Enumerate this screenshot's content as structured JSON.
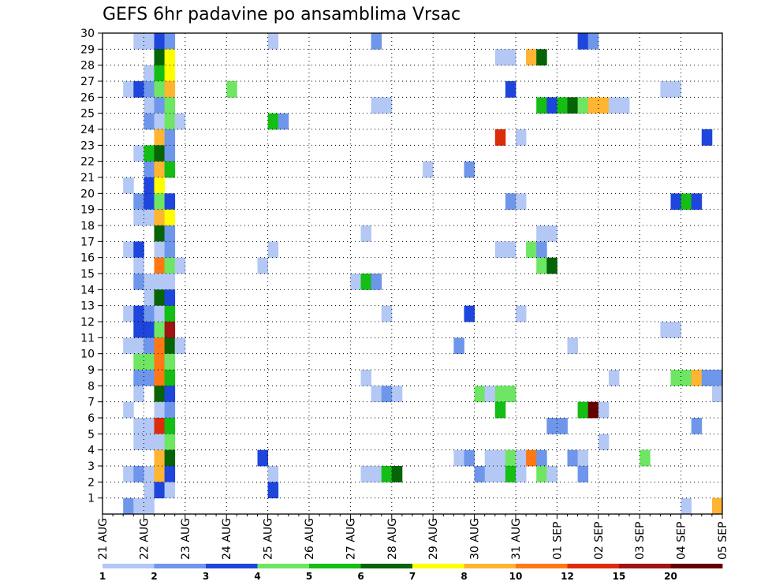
{
  "chart_data": {
    "type": "heatmap",
    "title": "GEFS 6hr padavine po ansamblima Vrsac",
    "x_tick_labels": [
      "21 AUG",
      "22 AUG",
      "23 AUG",
      "24 AUG",
      "25 AUG",
      "26 AUG",
      "27 AUG",
      "28 AUG",
      "29 AUG",
      "30 AUG",
      "31 AUG",
      "01 SEP",
      "02 SEP",
      "03 SEP",
      "04 SEP",
      "05 SEP"
    ],
    "x_steps_per_day": 4,
    "y_tick_labels": [
      "1",
      "2",
      "3",
      "4",
      "5",
      "6",
      "7",
      "8",
      "9",
      "10",
      "11",
      "12",
      "13",
      "14",
      "15",
      "16",
      "17",
      "18",
      "19",
      "20",
      "21",
      "22",
      "23",
      "24",
      "25",
      "26",
      "27",
      "28",
      "29",
      "30"
    ],
    "ylim": [
      0,
      30
    ],
    "grid": true,
    "colorbar": {
      "labels": [
        "1",
        "2",
        "3",
        "4",
        "5",
        "6",
        "7",
        "8",
        "10",
        "12",
        "15",
        "20"
      ],
      "colors": [
        "#b4c8f5",
        "#6e96eb",
        "#1e46dc",
        "#6ee664",
        "#14be14",
        "#066406",
        "#ffff00",
        "#ffb432",
        "#ff7814",
        "#dc2d0a",
        "#a01414",
        "#640000"
      ]
    },
    "cells": [
      {
        "member": 30,
        "step": 3,
        "level": 0
      },
      {
        "member": 30,
        "step": 4,
        "level": 0
      },
      {
        "member": 30,
        "step": 5,
        "level": 2
      },
      {
        "member": 30,
        "step": 6,
        "level": 1
      },
      {
        "member": 30,
        "step": 16,
        "level": 0
      },
      {
        "member": 30,
        "step": 26,
        "level": 1
      },
      {
        "member": 30,
        "step": 46,
        "level": 2
      },
      {
        "member": 30,
        "step": 47,
        "level": 1
      },
      {
        "member": 29,
        "step": 5,
        "level": 5
      },
      {
        "member": 29,
        "step": 6,
        "level": 6
      },
      {
        "member": 29,
        "step": 38,
        "level": 0
      },
      {
        "member": 29,
        "step": 39,
        "level": 0
      },
      {
        "member": 29,
        "step": 41,
        "level": 7
      },
      {
        "member": 29,
        "step": 42,
        "level": 5
      },
      {
        "member": 28,
        "step": 4,
        "level": 0
      },
      {
        "member": 28,
        "step": 5,
        "level": 4
      },
      {
        "member": 28,
        "step": 6,
        "level": 6
      },
      {
        "member": 27,
        "step": 2,
        "level": 0
      },
      {
        "member": 27,
        "step": 3,
        "level": 2
      },
      {
        "member": 27,
        "step": 4,
        "level": 1
      },
      {
        "member": 27,
        "step": 5,
        "level": 3
      },
      {
        "member": 27,
        "step": 6,
        "level": 7
      },
      {
        "member": 27,
        "step": 12,
        "level": 3
      },
      {
        "member": 27,
        "step": 39,
        "level": 2
      },
      {
        "member": 27,
        "step": 54,
        "level": 0
      },
      {
        "member": 27,
        "step": 55,
        "level": 0
      },
      {
        "member": 26,
        "step": 4,
        "level": 0
      },
      {
        "member": 26,
        "step": 5,
        "level": 1
      },
      {
        "member": 26,
        "step": 6,
        "level": 3
      },
      {
        "member": 26,
        "step": 26,
        "level": 0
      },
      {
        "member": 26,
        "step": 27,
        "level": 0
      },
      {
        "member": 26,
        "step": 42,
        "level": 4
      },
      {
        "member": 26,
        "step": 43,
        "level": 2
      },
      {
        "member": 26,
        "step": 44,
        "level": 4
      },
      {
        "member": 26,
        "step": 45,
        "level": 5
      },
      {
        "member": 26,
        "step": 46,
        "level": 3
      },
      {
        "member": 26,
        "step": 47,
        "level": 7
      },
      {
        "member": 26,
        "step": 48,
        "level": 7
      },
      {
        "member": 26,
        "step": 49,
        "level": 0
      },
      {
        "member": 26,
        "step": 50,
        "level": 0
      },
      {
        "member": 25,
        "step": 4,
        "level": 1
      },
      {
        "member": 25,
        "step": 5,
        "level": 0
      },
      {
        "member": 25,
        "step": 6,
        "level": 3
      },
      {
        "member": 25,
        "step": 7,
        "level": 0
      },
      {
        "member": 25,
        "step": 16,
        "level": 4
      },
      {
        "member": 25,
        "step": 17,
        "level": 1
      },
      {
        "member": 24,
        "step": 5,
        "level": 7
      },
      {
        "member": 24,
        "step": 6,
        "level": 1
      },
      {
        "member": 24,
        "step": 38,
        "level": 9
      },
      {
        "member": 24,
        "step": 40,
        "level": 0
      },
      {
        "member": 24,
        "step": 58,
        "level": 2
      },
      {
        "member": 23,
        "step": 3,
        "level": 0
      },
      {
        "member": 23,
        "step": 4,
        "level": 4
      },
      {
        "member": 23,
        "step": 5,
        "level": 5
      },
      {
        "member": 23,
        "step": 6,
        "level": 1
      },
      {
        "member": 22,
        "step": 4,
        "level": 1
      },
      {
        "member": 22,
        "step": 5,
        "level": 7
      },
      {
        "member": 22,
        "step": 6,
        "level": 4
      },
      {
        "member": 22,
        "step": 31,
        "level": 0
      },
      {
        "member": 22,
        "step": 35,
        "level": 1
      },
      {
        "member": 21,
        "step": 2,
        "level": 0
      },
      {
        "member": 21,
        "step": 4,
        "level": 2
      },
      {
        "member": 21,
        "step": 5,
        "level": 6
      },
      {
        "member": 20,
        "step": 3,
        "level": 1
      },
      {
        "member": 20,
        "step": 4,
        "level": 2
      },
      {
        "member": 20,
        "step": 5,
        "level": 3
      },
      {
        "member": 20,
        "step": 6,
        "level": 2
      },
      {
        "member": 20,
        "step": 39,
        "level": 1
      },
      {
        "member": 20,
        "step": 40,
        "level": 0
      },
      {
        "member": 20,
        "step": 55,
        "level": 2
      },
      {
        "member": 20,
        "step": 56,
        "level": 4
      },
      {
        "member": 20,
        "step": 57,
        "level": 2
      },
      {
        "member": 19,
        "step": 3,
        "level": 0
      },
      {
        "member": 19,
        "step": 4,
        "level": 0
      },
      {
        "member": 19,
        "step": 5,
        "level": 7
      },
      {
        "member": 19,
        "step": 6,
        "level": 6
      },
      {
        "member": 18,
        "step": 5,
        "level": 5
      },
      {
        "member": 18,
        "step": 6,
        "level": 1
      },
      {
        "member": 18,
        "step": 25,
        "level": 0
      },
      {
        "member": 18,
        "step": 42,
        "level": 0
      },
      {
        "member": 18,
        "step": 43,
        "level": 0
      },
      {
        "member": 17,
        "step": 2,
        "level": 0
      },
      {
        "member": 17,
        "step": 3,
        "level": 2
      },
      {
        "member": 17,
        "step": 5,
        "level": 0
      },
      {
        "member": 17,
        "step": 6,
        "level": 1
      },
      {
        "member": 17,
        "step": 16,
        "level": 0
      },
      {
        "member": 17,
        "step": 38,
        "level": 0
      },
      {
        "member": 17,
        "step": 39,
        "level": 0
      },
      {
        "member": 17,
        "step": 41,
        "level": 3
      },
      {
        "member": 17,
        "step": 42,
        "level": 1
      },
      {
        "member": 16,
        "step": 3,
        "level": 0
      },
      {
        "member": 16,
        "step": 5,
        "level": 8
      },
      {
        "member": 16,
        "step": 6,
        "level": 3
      },
      {
        "member": 16,
        "step": 7,
        "level": 0
      },
      {
        "member": 16,
        "step": 15,
        "level": 0
      },
      {
        "member": 16,
        "step": 42,
        "level": 3
      },
      {
        "member": 16,
        "step": 43,
        "level": 5
      },
      {
        "member": 15,
        "step": 3,
        "level": 1
      },
      {
        "member": 15,
        "step": 4,
        "level": 0
      },
      {
        "member": 15,
        "step": 5,
        "level": 0
      },
      {
        "member": 15,
        "step": 6,
        "level": 0
      },
      {
        "member": 15,
        "step": 24,
        "level": 0
      },
      {
        "member": 15,
        "step": 25,
        "level": 4
      },
      {
        "member": 15,
        "step": 26,
        "level": 1
      },
      {
        "member": 14,
        "step": 4,
        "level": 0
      },
      {
        "member": 14,
        "step": 5,
        "level": 5
      },
      {
        "member": 14,
        "step": 6,
        "level": 2
      },
      {
        "member": 13,
        "step": 2,
        "level": 0
      },
      {
        "member": 13,
        "step": 3,
        "level": 2
      },
      {
        "member": 13,
        "step": 4,
        "level": 1
      },
      {
        "member": 13,
        "step": 5,
        "level": 0
      },
      {
        "member": 13,
        "step": 6,
        "level": 4
      },
      {
        "member": 13,
        "step": 27,
        "level": 0
      },
      {
        "member": 13,
        "step": 35,
        "level": 2
      },
      {
        "member": 13,
        "step": 40,
        "level": 0
      },
      {
        "member": 12,
        "step": 3,
        "level": 2
      },
      {
        "member": 12,
        "step": 4,
        "level": 2
      },
      {
        "member": 12,
        "step": 5,
        "level": 3
      },
      {
        "member": 12,
        "step": 6,
        "level": 10
      },
      {
        "member": 12,
        "step": 54,
        "level": 0
      },
      {
        "member": 12,
        "step": 55,
        "level": 0
      },
      {
        "member": 11,
        "step": 2,
        "level": 0
      },
      {
        "member": 11,
        "step": 3,
        "level": 0
      },
      {
        "member": 11,
        "step": 4,
        "level": 1
      },
      {
        "member": 11,
        "step": 5,
        "level": 8
      },
      {
        "member": 11,
        "step": 6,
        "level": 5
      },
      {
        "member": 11,
        "step": 7,
        "level": 0
      },
      {
        "member": 11,
        "step": 34,
        "level": 1
      },
      {
        "member": 11,
        "step": 45,
        "level": 0
      },
      {
        "member": 10,
        "step": 3,
        "level": 3
      },
      {
        "member": 10,
        "step": 4,
        "level": 3
      },
      {
        "member": 10,
        "step": 5,
        "level": 8
      },
      {
        "member": 10,
        "step": 6,
        "level": 3
      },
      {
        "member": 9,
        "step": 3,
        "level": 1
      },
      {
        "member": 9,
        "step": 4,
        "level": 1
      },
      {
        "member": 9,
        "step": 5,
        "level": 8
      },
      {
        "member": 9,
        "step": 6,
        "level": 4
      },
      {
        "member": 9,
        "step": 25,
        "level": 0
      },
      {
        "member": 9,
        "step": 49,
        "level": 0
      },
      {
        "member": 9,
        "step": 55,
        "level": 3
      },
      {
        "member": 9,
        "step": 56,
        "level": 3
      },
      {
        "member": 9,
        "step": 57,
        "level": 7
      },
      {
        "member": 9,
        "step": 58,
        "level": 1
      },
      {
        "member": 9,
        "step": 59,
        "level": 1
      },
      {
        "member": 8,
        "step": 3,
        "level": 0
      },
      {
        "member": 8,
        "step": 5,
        "level": 5
      },
      {
        "member": 8,
        "step": 6,
        "level": 2
      },
      {
        "member": 8,
        "step": 26,
        "level": 0
      },
      {
        "member": 8,
        "step": 27,
        "level": 1
      },
      {
        "member": 8,
        "step": 28,
        "level": 0
      },
      {
        "member": 8,
        "step": 36,
        "level": 3
      },
      {
        "member": 8,
        "step": 37,
        "level": 0
      },
      {
        "member": 8,
        "step": 38,
        "level": 3
      },
      {
        "member": 8,
        "step": 39,
        "level": 3
      },
      {
        "member": 8,
        "step": 59,
        "level": 0
      },
      {
        "member": 7,
        "step": 2,
        "level": 0
      },
      {
        "member": 7,
        "step": 5,
        "level": 0
      },
      {
        "member": 7,
        "step": 6,
        "level": 1
      },
      {
        "member": 7,
        "step": 38,
        "level": 4
      },
      {
        "member": 7,
        "step": 46,
        "level": 4
      },
      {
        "member": 7,
        "step": 47,
        "level": 11
      },
      {
        "member": 7,
        "step": 48,
        "level": 0
      },
      {
        "member": 6,
        "step": 3,
        "level": 0
      },
      {
        "member": 6,
        "step": 4,
        "level": 0
      },
      {
        "member": 6,
        "step": 5,
        "level": 9
      },
      {
        "member": 6,
        "step": 6,
        "level": 4
      },
      {
        "member": 6,
        "step": 43,
        "level": 1
      },
      {
        "member": 6,
        "step": 44,
        "level": 1
      },
      {
        "member": 6,
        "step": 57,
        "level": 1
      },
      {
        "member": 5,
        "step": 3,
        "level": 0
      },
      {
        "member": 5,
        "step": 4,
        "level": 0
      },
      {
        "member": 5,
        "step": 5,
        "level": 0
      },
      {
        "member": 5,
        "step": 6,
        "level": 3
      },
      {
        "member": 5,
        "step": 48,
        "level": 0
      },
      {
        "member": 4,
        "step": 5,
        "level": 7
      },
      {
        "member": 4,
        "step": 6,
        "level": 5
      },
      {
        "member": 4,
        "step": 15,
        "level": 2
      },
      {
        "member": 4,
        "step": 34,
        "level": 0
      },
      {
        "member": 4,
        "step": 35,
        "level": 1
      },
      {
        "member": 4,
        "step": 37,
        "level": 0
      },
      {
        "member": 4,
        "step": 38,
        "level": 0
      },
      {
        "member": 4,
        "step": 39,
        "level": 3
      },
      {
        "member": 4,
        "step": 40,
        "level": 0
      },
      {
        "member": 4,
        "step": 41,
        "level": 8
      },
      {
        "member": 4,
        "step": 42,
        "level": 1
      },
      {
        "member": 4,
        "step": 45,
        "level": 1
      },
      {
        "member": 4,
        "step": 46,
        "level": 0
      },
      {
        "member": 4,
        "step": 52,
        "level": 3
      },
      {
        "member": 3,
        "step": 2,
        "level": 0
      },
      {
        "member": 3,
        "step": 3,
        "level": 1
      },
      {
        "member": 3,
        "step": 4,
        "level": 0
      },
      {
        "member": 3,
        "step": 5,
        "level": 7
      },
      {
        "member": 3,
        "step": 6,
        "level": 2
      },
      {
        "member": 3,
        "step": 16,
        "level": 0
      },
      {
        "member": 3,
        "step": 25,
        "level": 0
      },
      {
        "member": 3,
        "step": 26,
        "level": 0
      },
      {
        "member": 3,
        "step": 27,
        "level": 4
      },
      {
        "member": 3,
        "step": 28,
        "level": 5
      },
      {
        "member": 3,
        "step": 36,
        "level": 1
      },
      {
        "member": 3,
        "step": 37,
        "level": 0
      },
      {
        "member": 3,
        "step": 38,
        "level": 0
      },
      {
        "member": 3,
        "step": 39,
        "level": 4
      },
      {
        "member": 3,
        "step": 40,
        "level": 0
      },
      {
        "member": 3,
        "step": 42,
        "level": 3
      },
      {
        "member": 3,
        "step": 43,
        "level": 0
      },
      {
        "member": 3,
        "step": 46,
        "level": 1
      },
      {
        "member": 2,
        "step": 4,
        "level": 0
      },
      {
        "member": 2,
        "step": 5,
        "level": 2
      },
      {
        "member": 2,
        "step": 6,
        "level": 0
      },
      {
        "member": 2,
        "step": 16,
        "level": 2
      },
      {
        "member": 1,
        "step": 2,
        "level": 1
      },
      {
        "member": 1,
        "step": 3,
        "level": 0
      },
      {
        "member": 1,
        "step": 4,
        "level": 0
      },
      {
        "member": 1,
        "step": 56,
        "level": 0
      },
      {
        "member": 1,
        "step": 59,
        "level": 7
      }
    ]
  }
}
